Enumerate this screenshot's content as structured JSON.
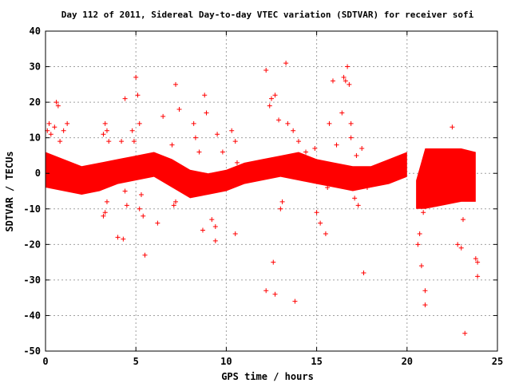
{
  "chart_data": {
    "type": "scatter",
    "title": "Day 112 of 2011, Sidereal Day-to-day VTEC variation (SDTVAR) for receiver sofi",
    "xlabel": "GPS time / hours",
    "ylabel": "SDTVAR / TECUs",
    "xlim": [
      0,
      25
    ],
    "ylim": [
      -50,
      40
    ],
    "xticks": [
      0,
      5,
      10,
      15,
      20,
      25
    ],
    "yticks": [
      -50,
      -40,
      -30,
      -20,
      -10,
      0,
      10,
      20,
      30,
      40
    ],
    "grid": true,
    "marker": "+",
    "color": "#ff0000",
    "dense_band": {
      "x": [
        0,
        1,
        2,
        3,
        4,
        5,
        6,
        7,
        8,
        9,
        10,
        11,
        12,
        13,
        14,
        15,
        16,
        17,
        18,
        19,
        20
      ],
      "upper": [
        6,
        4,
        2,
        3,
        4,
        5,
        6,
        4,
        1,
        0,
        1,
        3,
        4,
        5,
        6,
        4,
        3,
        2,
        2,
        4,
        6
      ],
      "lower": [
        -4,
        -5,
        -6,
        -5,
        -3,
        -2,
        -1,
        -4,
        -7,
        -6,
        -5,
        -3,
        -2,
        -1,
        -2,
        -3,
        -4,
        -5,
        -4,
        -3,
        -1
      ]
    },
    "scatter_band": {
      "x": [
        20.5,
        21,
        22,
        23,
        23.8
      ],
      "upper": [
        -2,
        7,
        7,
        7,
        6
      ],
      "lower": [
        -10,
        -10,
        -9,
        -8,
        -8
      ]
    },
    "points": [
      [
        0.1,
        12
      ],
      [
        0.2,
        14
      ],
      [
        0.3,
        11
      ],
      [
        0.5,
        13
      ],
      [
        0.6,
        20
      ],
      [
        0.7,
        19
      ],
      [
        0.8,
        9
      ],
      [
        1.0,
        12
      ],
      [
        1.2,
        14
      ],
      [
        1.3,
        2
      ],
      [
        3.2,
        11
      ],
      [
        3.3,
        14
      ],
      [
        3.4,
        12
      ],
      [
        3.5,
        9
      ],
      [
        3.2,
        -12
      ],
      [
        3.3,
        -11
      ],
      [
        3.4,
        -8
      ],
      [
        4.0,
        -18
      ],
      [
        4.2,
        9
      ],
      [
        4.4,
        21
      ],
      [
        4.3,
        -18.5
      ],
      [
        4.5,
        -9
      ],
      [
        4.4,
        -5
      ],
      [
        4.8,
        12
      ],
      [
        4.9,
        9
      ],
      [
        5.0,
        27
      ],
      [
        5.1,
        22
      ],
      [
        5.2,
        14
      ],
      [
        5.2,
        -10
      ],
      [
        5.3,
        -6
      ],
      [
        5.5,
        -23
      ],
      [
        5.4,
        -12
      ],
      [
        6.2,
        -14
      ],
      [
        6.5,
        16
      ],
      [
        7.0,
        8
      ],
      [
        7.2,
        25
      ],
      [
        7.4,
        18
      ],
      [
        7.1,
        -9
      ],
      [
        7.2,
        -8
      ],
      [
        8.2,
        14
      ],
      [
        8.3,
        10
      ],
      [
        8.5,
        6
      ],
      [
        8.8,
        22
      ],
      [
        8.9,
        17
      ],
      [
        9.2,
        -13
      ],
      [
        9.4,
        -15
      ],
      [
        9.4,
        -19
      ],
      [
        8.7,
        -16
      ],
      [
        9.5,
        11
      ],
      [
        9.8,
        6
      ],
      [
        10.3,
        12
      ],
      [
        10.5,
        9
      ],
      [
        10.5,
        -17
      ],
      [
        10.6,
        3
      ],
      [
        12.2,
        29
      ],
      [
        12.4,
        19
      ],
      [
        12.5,
        21
      ],
      [
        12.7,
        22
      ],
      [
        12.9,
        15
      ],
      [
        12.6,
        -25
      ],
      [
        12.2,
        -33
      ],
      [
        12.7,
        -34
      ],
      [
        13.3,
        31
      ],
      [
        13.0,
        -10
      ],
      [
        13.1,
        -8
      ],
      [
        13.4,
        14
      ],
      [
        13.7,
        12
      ],
      [
        13.8,
        -36
      ],
      [
        14.0,
        9
      ],
      [
        14.4,
        6
      ],
      [
        14.9,
        7
      ],
      [
        15.0,
        -11
      ],
      [
        15.2,
        -14
      ],
      [
        15.5,
        -17
      ],
      [
        15.6,
        -4
      ],
      [
        15.7,
        14
      ],
      [
        15.9,
        26
      ],
      [
        16.1,
        8
      ],
      [
        16.4,
        17
      ],
      [
        16.5,
        27
      ],
      [
        16.6,
        26
      ],
      [
        16.7,
        30
      ],
      [
        16.8,
        25
      ],
      [
        16.9,
        14
      ],
      [
        16.9,
        10
      ],
      [
        17.2,
        5
      ],
      [
        17.1,
        -7
      ],
      [
        17.3,
        -9
      ],
      [
        17.5,
        7
      ],
      [
        17.8,
        -4
      ],
      [
        17.6,
        -28
      ],
      [
        20.7,
        -17
      ],
      [
        20.8,
        -26
      ],
      [
        20.9,
        -11
      ],
      [
        20.6,
        -20
      ],
      [
        21.0,
        -33
      ],
      [
        21.0,
        -37
      ],
      [
        22.5,
        13
      ],
      [
        22.6,
        5
      ],
      [
        22.8,
        -20
      ],
      [
        23.0,
        -21
      ],
      [
        23.1,
        -13
      ],
      [
        23.2,
        -45
      ],
      [
        23.8,
        -24
      ],
      [
        23.9,
        -29
      ],
      [
        23.9,
        -25
      ]
    ]
  }
}
